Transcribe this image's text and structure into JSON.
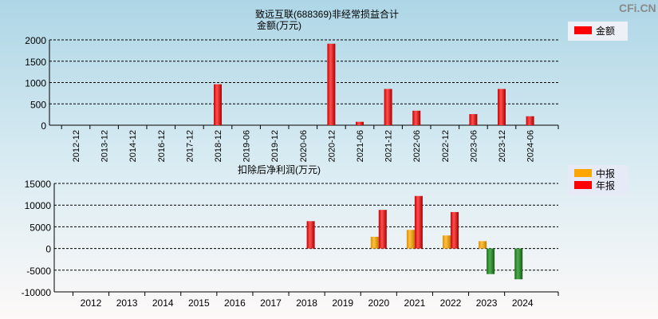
{
  "watermark": "CFi.CN",
  "chart_data": [
    {
      "type": "bar",
      "title": "致远互联(688369)非经常损益合计",
      "ylabel": "金额(万元)",
      "ylim": [
        0,
        2000
      ],
      "yticks": [
        0,
        500,
        1000,
        1500,
        2000
      ],
      "grid": true,
      "legend_placement": "top-right",
      "categories": [
        "2012-12",
        "2013-12",
        "2014-12",
        "2016-12",
        "2017-12",
        "2018-12",
        "2019-06",
        "2019-12",
        "2020-06",
        "2020-12",
        "2021-06",
        "2021-12",
        "2022-06",
        "2022-12",
        "2023-06",
        "2023-12",
        "2024-06"
      ],
      "series": [
        {
          "name": "金额",
          "color": "#ff0000",
          "values": [
            null,
            null,
            null,
            null,
            null,
            960,
            null,
            null,
            null,
            1910,
            80,
            850,
            340,
            null,
            260,
            850,
            210
          ]
        }
      ]
    },
    {
      "type": "bar",
      "title": "扣除后净利润(万元)",
      "ylim": [
        -10000,
        15000
      ],
      "yticks": [
        -10000,
        -5000,
        0,
        5000,
        10000,
        15000
      ],
      "grid": true,
      "legend_placement": "top-right",
      "negative_color": "#2e8b2e",
      "categories": [
        "2012",
        "2013",
        "2014",
        "2015",
        "2016",
        "2017",
        "2018",
        "2019",
        "2020",
        "2021",
        "2022",
        "2023",
        "2024"
      ],
      "series": [
        {
          "name": "中报",
          "color": "#ffa500",
          "values": [
            null,
            null,
            null,
            null,
            null,
            null,
            null,
            null,
            2700,
            4300,
            3000,
            1700,
            -7100
          ]
        },
        {
          "name": "年报",
          "color": "#ff0000",
          "values": [
            null,
            null,
            null,
            null,
            null,
            null,
            6300,
            null,
            8900,
            12100,
            8400,
            -5900,
            null
          ]
        }
      ]
    }
  ]
}
